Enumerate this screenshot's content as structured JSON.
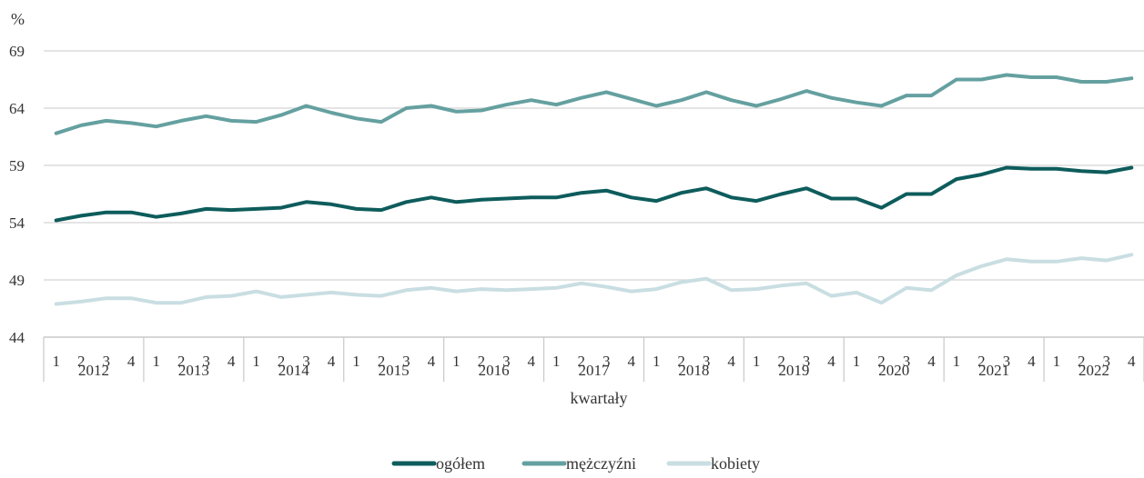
{
  "chart_data": {
    "type": "line",
    "ylabel": "%",
    "xlabel": "kwartały",
    "ylim": [
      44,
      69
    ],
    "yticks": [
      44,
      49,
      54,
      59,
      64,
      69
    ],
    "grid": true,
    "legend_position": "bottom",
    "years": [
      "2012",
      "2013",
      "2014",
      "2015",
      "2016",
      "2017",
      "2018",
      "2019",
      "2020",
      "2021",
      "2022"
    ],
    "quarters": [
      "1",
      "2",
      "3",
      "4"
    ],
    "series": [
      {
        "name": "ogółem",
        "color": "#0e5c5c",
        "values": [
          54.2,
          54.6,
          54.9,
          54.9,
          54.5,
          54.8,
          55.2,
          55.1,
          55.2,
          55.3,
          55.8,
          55.6,
          55.2,
          55.1,
          55.8,
          56.2,
          55.8,
          56.0,
          56.1,
          56.2,
          56.2,
          56.6,
          56.8,
          56.2,
          55.9,
          56.6,
          57.0,
          56.2,
          55.9,
          56.5,
          57.0,
          56.1,
          56.1,
          55.3,
          56.5,
          56.5,
          57.8,
          58.2,
          58.8,
          58.7,
          58.7,
          58.5,
          58.4,
          58.8
        ]
      },
      {
        "name": "mężczyźni",
        "color": "#65a0a0",
        "values": [
          61.8,
          62.5,
          62.9,
          62.7,
          62.4,
          62.9,
          63.3,
          62.9,
          62.8,
          63.4,
          64.2,
          63.6,
          63.1,
          62.8,
          64.0,
          64.2,
          63.7,
          63.8,
          64.3,
          64.7,
          64.3,
          64.9,
          65.4,
          64.8,
          64.2,
          64.7,
          65.4,
          64.7,
          64.2,
          64.8,
          65.5,
          64.9,
          64.5,
          64.2,
          65.1,
          65.1,
          66.5,
          66.5,
          66.9,
          66.7,
          66.7,
          66.3,
          66.3,
          66.6
        ]
      },
      {
        "name": "kobiety",
        "color": "#c9dee2",
        "values": [
          46.9,
          47.1,
          47.4,
          47.4,
          47.0,
          47.0,
          47.5,
          47.6,
          48.0,
          47.5,
          47.7,
          47.9,
          47.7,
          47.6,
          48.1,
          48.3,
          48.0,
          48.2,
          48.1,
          48.2,
          48.3,
          48.7,
          48.4,
          48.0,
          48.2,
          48.8,
          49.1,
          48.1,
          48.2,
          48.5,
          48.7,
          47.6,
          47.9,
          47.0,
          48.3,
          48.1,
          49.4,
          50.2,
          50.8,
          50.6,
          50.6,
          50.9,
          50.7,
          51.2
        ]
      }
    ]
  }
}
